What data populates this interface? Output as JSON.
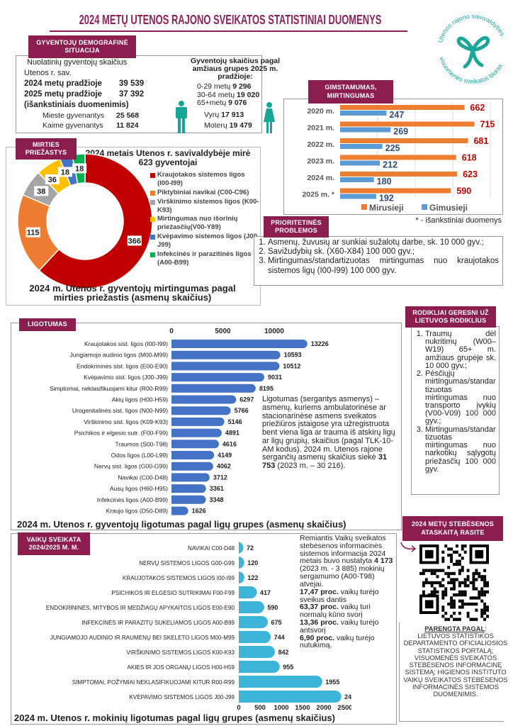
{
  "title": "2024 METŲ UTENOS RAJONO SVEIKATOS STATISTINIAI DUOMENYS",
  "logo": {
    "text_top": "Utenos rajono savivaldybės",
    "text_bottom": "visuomenės sveikatos biuras",
    "color": "#1aa79a"
  },
  "colors": {
    "brand": "#8c1d4f",
    "title": "#8e2157"
  },
  "demographics": {
    "tab": "GYVENTOJŲ DEMOGRAFINĖ SITUACIJA",
    "line1": "Nuolatinių gyventojų skaičius",
    "line2": "Utenos r. sav.",
    "y2024_label": "2024 metų pradžioje",
    "y2024_value": "39 539",
    "y2025_label": "2025 metų pradžioje",
    "y2025_value": "37 392",
    "note": "(išankstiniais duomenimis)",
    "urban_label": "Mieste gyvenantys",
    "urban_value": "25 568",
    "rural_label": "Kaime gyvenantys",
    "rural_value": "11 824",
    "age_title": "Gyventojų skaičius pagal amžiaus grupes 2025 m. pradžioje:",
    "age_groups": [
      {
        "label": "0-29 metų",
        "value": "9 296"
      },
      {
        "label": "30-64 metų",
        "value": "19 020"
      },
      {
        "label": "65+metų",
        "value": "9 076"
      }
    ],
    "men_label": "Vyrų",
    "men_value": "17 913",
    "women_label": "Moterų",
    "women_value": "19 479"
  },
  "death_causes": {
    "tab": "MIRTIES PRIEŽASTYS",
    "title": "2024 metais Utenos r. savivaldybėje mirė  623 gyventojai",
    "caption": "2024 m. Utenos r. gyventojų mirtingumas pagal mirties priežastis (asmenų skaičius)"
  },
  "births_deaths": {
    "tab": "GIMSTAMUMAS, MIRTINGUMAS",
    "footnote": "* - išankstiniai duomenys"
  },
  "priorities": {
    "tab": "PRIORITETINĖS PROBLEMOS",
    "items": [
      "Asmenų, žuvusių ar sunkiai sužalotų darbe, sk. 10 000 gyv.;",
      "Savižudybių sk. (X60-X84) 100 000 gyv.;",
      "Mirtingumas/standartizuotas mirtingumas nuo kraujotakos sistemos ligų (I00-I99) 100 000 gyv."
    ]
  },
  "better_indicators": {
    "tab": "RODIKLIAI GERESNI UŽ LIETUVOS RODIKLIUS",
    "items": [
      "Traumų dėl nukritimų (W00–W19) 65+ m. amžiaus grupėje sk. 10 000 gyv.;",
      "Pėsčiųjų mirtingumas/standartizuotas mirtingumas nuo transporto įvykių (V00-V09) 100 000 gyv.;",
      "Mirtingumas/standartizuotas mirtingumas nuo narkotikų sąlygotų priežasčių 100 000 gyv."
    ]
  },
  "morbidity": {
    "tab": "LIGOTUMAS",
    "description": "Ligotumas (sergantys asmenys) – asmenų, kuriems ambulatorinėse ar stacionarinėse asmens sveikatos priežiūros įstaigose yra užregistruota bent viena liga ar trauma iš atskirų ligų ar ligų grupių, skaičius (pagal TLK-10-AM kodus). 2024 m. Utenos rajone sergančių asmenų skaičius siekė ",
    "total": "31 753",
    "prev": " (2023 m. – 30 216)."
  },
  "children": {
    "tab": "VAIKŲ SVEIKATA 2024/2025 M. M.",
    "p1a": "Remiantis Vaikų sveikatos stebėsenos informacinės sistemos informacija 2024 metais buvo nustatyta ",
    "p1b": "4 173",
    "p1c": " (2023 m. - 3 885) mokinių sergamumo (A00-T98) atvejai.",
    "stats": [
      {
        "value": "17,47 proc.",
        "text": " vaikų turėjo sveikus dantis"
      },
      {
        "value": "63,37 proc.",
        "text": " vaikų turi normalų kūno svorį"
      },
      {
        "value": "13,36 proc.",
        "text": " vaikų turėjo antsvorį"
      },
      {
        "value": "6,90 proc.",
        "text": " vaikų turėjo nutukimą."
      }
    ]
  },
  "report": {
    "tab": "2024 METŲ STEBĖSENOS ATASKAITĄ RASITE",
    "source_title": "PARENGTA PAGAL",
    "source_text": "LIETUVOS STATISTIKOS DEPARTAMENTO OFICIALIOSIOS STATISTIKOS PORTALĄ; VISUOMENĖS SVEIKATOS STEBĖSENOS INFORMACINĘ SISTEMĄ; HIGIENOS INSTITUTO VAIKŲ SVEIKATOS STEBĖSENOS INFORMACINĖS SISTEMOS DUOMENIMIS."
  },
  "chart_data": [
    {
      "type": "pie",
      "title": "2024 metais Utenos r. savivaldybėje mirė  623 gyventojai",
      "categories": [
        "Kraujotakos sistemos ligos (I00-I99)",
        "Piktybiniai navikai (C00-C96)",
        "Virškinimo sistemos ligos (K00-K93)",
        "Mirtingumas nuo išorinių priežasčių(V00-Y89)",
        "Kvėpavimo sistemos ligos (J00-J99)",
        "Infekcinės ir parazitinės ligos (A00-B99)"
      ],
      "values": [
        366,
        115,
        38,
        36,
        18,
        18
      ],
      "colors": [
        "#c00000",
        "#ed7d31",
        "#a5a5a5",
        "#ffc000",
        "#4472c4",
        "#00b050"
      ],
      "legend": "right"
    },
    {
      "type": "bar",
      "orientation": "horizontal",
      "categories": [
        "2020 m.",
        "2021 m.",
        "2022 m.",
        "2023 m.",
        "2024 m.",
        "2025 m. *"
      ],
      "series": [
        {
          "name": "Mirusieji",
          "values": [
            662,
            715,
            681,
            618,
            623,
            590
          ],
          "color": "#ed7d31"
        },
        {
          "name": "Gimusieji",
          "values": [
            247,
            269,
            225,
            212,
            180,
            192
          ],
          "color": "#5b9bd5"
        }
      ],
      "legend": "bottom"
    },
    {
      "type": "bar",
      "orientation": "horizontal",
      "title": "2024 m. Utenos r. gyventojų ligotumas pagal ligų grupes (asmenų skaičius)",
      "categories": [
        "Kraujotakos sist. ligos (I00-I99)",
        "Jungiamojo audinio ligos (M00-M99)",
        "Endokrininės sist. ligos (E00-E90)",
        "Kvėpavimo sist. ligos (J00-J99)",
        "Simptomai, neklasifikuojami kitur (R00-R99)",
        "Akių ligos (H00-H59)",
        "Urogenitalinės sist. ligos (N00-N99)",
        "Virškinimo sist. ligos (K09-K93)",
        "Psichikos ir elgesio sutr. (F00-F99)",
        "Traumos (S00-T98)",
        "Odos ligos (L00-L99)",
        "Nervų sist. ligos (G00-G99)",
        "Navikai (C00-D48)",
        "Ausų ligos (H60-H95)",
        "Infekcinės ligos (A00-B99)",
        "Kraujo ligos (D50-D89)"
      ],
      "values": [
        13226,
        10593,
        10512,
        9031,
        8195,
        6297,
        5766,
        5146,
        4891,
        4616,
        4149,
        4062,
        3712,
        3361,
        3348,
        1626
      ],
      "xticks": [
        "0",
        "5000",
        "10000"
      ],
      "xlim": [
        0,
        15000
      ],
      "color": "#4472c4"
    },
    {
      "type": "bar",
      "orientation": "horizontal",
      "title": "2024 m. Utenos r. mokinių ligotumas pagal ligų grupes (asmenų skaičius)",
      "categories": [
        "NAVIKAI C00-D48",
        "NERVŲ SISTEMOS LIGOS G00-G99",
        "KRAUJOTAKOS SISTEMOS LIGOS I00-I99",
        "PSICHIKOS IR ELGESIO SUTRIKIMAI F00-F99",
        "ENDOKRININĖS, MITYBOS IR MEDŽIAGŲ APYKAITOS LIGOS E00-E90",
        "INFEKCINĖS IR PARAZITŲ SUKELIAMOS LIGOS A00-B99",
        "JUNGIAMOJO AUDINIO IR RAUMENŲ BEI SKELETO LIGOS M00-M99",
        "VIRŠKINIMO SISTEMOS LIGOS K00-K93",
        "AKIES IR JOS ORGANŲ LIGOS H00-H59",
        "SIMPTOMAI, POŽYMIAI NEKLASIFIKUOJAMI KITUR R00-R99",
        "KVĖPAVIMO SISTEMOS LIGOS J00-J99"
      ],
      "values": [
        72,
        120,
        122,
        417,
        590,
        675,
        744,
        842,
        955,
        1955,
        2402
      ],
      "xticks": [
        "0",
        "500",
        "1000",
        "1500",
        "2000",
        "2500"
      ],
      "xlim": [
        0,
        2500
      ],
      "color": "#3db5d8"
    }
  ]
}
